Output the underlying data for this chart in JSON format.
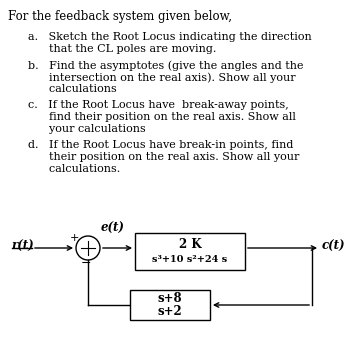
{
  "title_text": "For the feedback system given below,",
  "item_a_1": "a.   Sketch the Root Locus indicating the direction",
  "item_a_2": "      that the CL poles are moving.",
  "item_b_1": "b.   Find the asymptotes (give the angles and the",
  "item_b_2": "      intersection on the real axis). Show all your",
  "item_b_3": "      calculations",
  "item_c_1": "c.   If the Root Locus have  break-away points,",
  "item_c_2": "      find their position on the real axis. Show all",
  "item_c_3": "      your calculations",
  "item_d_1": "d.   If the Root Locus have break-in points, find",
  "item_d_2": "      their position on the real axis. Show all your",
  "item_d_3": "      calculations.",
  "fwd_num": "2 K",
  "fwd_den": "s³+10 s²+24 s",
  "fb_num": "s+8",
  "fb_den": "s+2",
  "label_rt": "r(t)",
  "label_et": "e(t)",
  "label_ct": "c(t)",
  "plus_sign": "+",
  "minus_sign": "−",
  "bg_color": "#ffffff",
  "text_color": "#000000",
  "fs_title": 8.5,
  "fs_body": 8.0,
  "fs_block": 8.5,
  "fs_label": 8.5
}
